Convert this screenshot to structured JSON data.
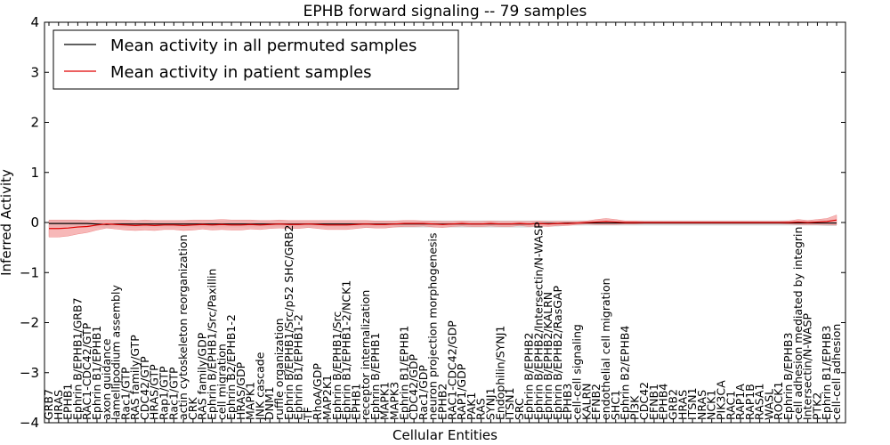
{
  "chart_data": {
    "type": "line",
    "title": "EPHB forward signaling -- 79 samples",
    "xlabel": "Cellular Entities",
    "ylabel": "Inferred Activity",
    "ylim": [
      -4,
      4
    ],
    "yticks": [
      -4,
      -3,
      -2,
      -1,
      0,
      1,
      2,
      3,
      4
    ],
    "legend_position": "top-left",
    "categories": [
      "GRB7",
      "HRAS",
      "EPHB1",
      "Ephrin B/EPHB1/GRB7",
      "RAC1-CDC42/GTP",
      "Ephrin B1/EPHB1",
      "axon guidance",
      "lamellipodium assembly",
      "Rac1/GTP",
      "RAS family/GTP",
      "CDC42/GTP",
      "HRAS/GTP",
      "Rap1/GTP",
      "Rac1/GTP",
      "actin cytoskeleton reorganization",
      "CRK",
      "RAS family/GDP",
      "Ephrin B/EPHB1/Src/Paxillin",
      "cell migration",
      "Ephrin B2/EPHB1-2",
      "HRAS/GDP",
      "MAPK1",
      "JNK cascade",
      "DNM1",
      "ruffle organization",
      "Ephrin B/EPHB1/Src/p52 SHC/GRB2",
      "Ephrin B1/EPHB1-2",
      "TF",
      "RhoA/GDP",
      "MAP2K1",
      "Ephrin B/EPHB1/Src",
      "Ephrin B1/EPHB1-2/NCK1",
      "EPHB1",
      "receptor internalization",
      "Ephrin B/EPHB1",
      "MAPK1",
      "MAPK3",
      "Ephrin B1/EPHB1",
      "CDC42/GDP",
      "Rac1/GDP",
      "neuron projection morphogenesis",
      "EPHB2",
      "RAC1-CDC42/GDP",
      "RAP1/GDP",
      "PAK1",
      "RAS",
      "SYNJ1",
      "Endophilin/SYNJ1",
      "ITSN1",
      "SRC",
      "Ephrin B/EPHB2",
      "Ephrin B/EPHB2/Intersectin/N-WASP",
      "Ephrin B/EPHB2/KALRN",
      "Ephrin B/EPHB2/RasGAP",
      "EPHB3",
      "cell-cell signaling",
      "KALRN",
      "EFNB2",
      "endothelial cell migration",
      "SHC1",
      "Ephrin B2/EPHB4",
      "PI3K",
      "CDC42",
      "EFNB1",
      "EPHB4",
      "GRB2",
      "HRAS",
      "ITSN1",
      "NRAS",
      "NCK1",
      "PIK3CA",
      "RAC1",
      "RAP1A",
      "RAP1B",
      "RASA1",
      "WASL",
      "ROCK1",
      "Ephrin B/EPHB3",
      "cell adhesion mediated by integrin",
      "Intersectin/N-WASP",
      "PTK2",
      "Ephrin B1/EPHB3",
      "cell-cell adhesion"
    ],
    "series": [
      {
        "name": "Mean activity in all permuted samples",
        "color": "#000000",
        "band_color": "#bbbbbb",
        "values": [
          -0.02,
          -0.02,
          -0.02,
          -0.02,
          -0.02,
          -0.03,
          -0.04,
          -0.03,
          -0.03,
          -0.03,
          -0.03,
          -0.03,
          -0.03,
          -0.03,
          -0.03,
          -0.03,
          -0.03,
          -0.03,
          -0.03,
          -0.03,
          -0.03,
          -0.03,
          -0.03,
          -0.03,
          -0.03,
          -0.03,
          -0.03,
          -0.03,
          -0.03,
          -0.03,
          -0.03,
          -0.03,
          -0.03,
          -0.03,
          -0.03,
          -0.03,
          -0.03,
          -0.03,
          -0.03,
          -0.03,
          -0.03,
          -0.03,
          -0.03,
          -0.03,
          -0.03,
          -0.03,
          -0.03,
          -0.03,
          -0.03,
          -0.03,
          -0.03,
          -0.02,
          -0.02,
          -0.02,
          -0.01,
          -0.01,
          -0.01,
          -0.01,
          -0.01,
          -0.01,
          -0.01,
          -0.01,
          -0.01,
          -0.01,
          -0.01,
          -0.01,
          -0.01,
          -0.01,
          -0.01,
          -0.01,
          -0.01,
          -0.01,
          -0.01,
          -0.01,
          -0.01,
          -0.01,
          -0.01,
          -0.01,
          -0.01,
          -0.01,
          -0.01,
          -0.01,
          -0.01
        ],
        "band": [
          0.07,
          0.07,
          0.07,
          0.07,
          0.07,
          0.07,
          0.07,
          0.07,
          0.07,
          0.07,
          0.07,
          0.07,
          0.07,
          0.07,
          0.07,
          0.07,
          0.07,
          0.07,
          0.07,
          0.07,
          0.07,
          0.07,
          0.07,
          0.07,
          0.07,
          0.07,
          0.07,
          0.07,
          0.07,
          0.07,
          0.07,
          0.07,
          0.07,
          0.07,
          0.07,
          0.07,
          0.07,
          0.07,
          0.07,
          0.07,
          0.07,
          0.07,
          0.07,
          0.07,
          0.07,
          0.07,
          0.07,
          0.07,
          0.07,
          0.07,
          0.07,
          0.06,
          0.06,
          0.06,
          0.05,
          0.05,
          0.05,
          0.05,
          0.05,
          0.05,
          0.05,
          0.05,
          0.05,
          0.05,
          0.05,
          0.05,
          0.05,
          0.05,
          0.05,
          0.05,
          0.05,
          0.05,
          0.05,
          0.05,
          0.05,
          0.05,
          0.05,
          0.05,
          0.05,
          0.05,
          0.05,
          0.06,
          0.06
        ]
      },
      {
        "name": "Mean activity in patient samples",
        "color": "#e00000",
        "band_color": "#f4a0a0",
        "values": [
          -0.12,
          -0.12,
          -0.11,
          -0.09,
          -0.08,
          -0.05,
          -0.03,
          -0.04,
          -0.05,
          -0.06,
          -0.05,
          -0.06,
          -0.05,
          -0.05,
          -0.06,
          -0.05,
          -0.04,
          -0.05,
          -0.04,
          -0.05,
          -0.05,
          -0.04,
          -0.05,
          -0.04,
          -0.03,
          -0.04,
          -0.04,
          -0.03,
          -0.04,
          -0.05,
          -0.05,
          -0.05,
          -0.04,
          -0.03,
          -0.04,
          -0.04,
          -0.03,
          -0.02,
          -0.02,
          -0.02,
          -0.03,
          -0.04,
          -0.03,
          -0.02,
          -0.03,
          -0.03,
          -0.02,
          -0.03,
          -0.03,
          -0.02,
          -0.03,
          -0.02,
          -0.03,
          -0.02,
          -0.02,
          -0.01,
          0.0,
          0.01,
          0.02,
          0.01,
          0.0,
          0.0,
          0.0,
          0.0,
          0.0,
          0.0,
          0.0,
          0.0,
          0.0,
          0.0,
          0.0,
          0.0,
          0.0,
          0.0,
          0.0,
          0.0,
          0.0,
          0.0,
          0.01,
          0.0,
          0.01,
          0.02,
          0.05
        ],
        "band": [
          0.17,
          0.17,
          0.16,
          0.14,
          0.12,
          0.1,
          0.08,
          0.09,
          0.1,
          0.1,
          0.1,
          0.1,
          0.09,
          0.09,
          0.1,
          0.1,
          0.09,
          0.1,
          0.1,
          0.1,
          0.1,
          0.09,
          0.09,
          0.08,
          0.08,
          0.08,
          0.08,
          0.07,
          0.08,
          0.09,
          0.09,
          0.09,
          0.08,
          0.07,
          0.07,
          0.07,
          0.06,
          0.06,
          0.06,
          0.05,
          0.06,
          0.06,
          0.05,
          0.05,
          0.05,
          0.05,
          0.05,
          0.05,
          0.05,
          0.04,
          0.05,
          0.05,
          0.05,
          0.04,
          0.04,
          0.03,
          0.03,
          0.05,
          0.06,
          0.05,
          0.03,
          0.03,
          0.02,
          0.02,
          0.02,
          0.02,
          0.02,
          0.02,
          0.02,
          0.02,
          0.02,
          0.02,
          0.02,
          0.02,
          0.02,
          0.02,
          0.02,
          0.03,
          0.05,
          0.04,
          0.05,
          0.06,
          0.1
        ]
      }
    ]
  }
}
